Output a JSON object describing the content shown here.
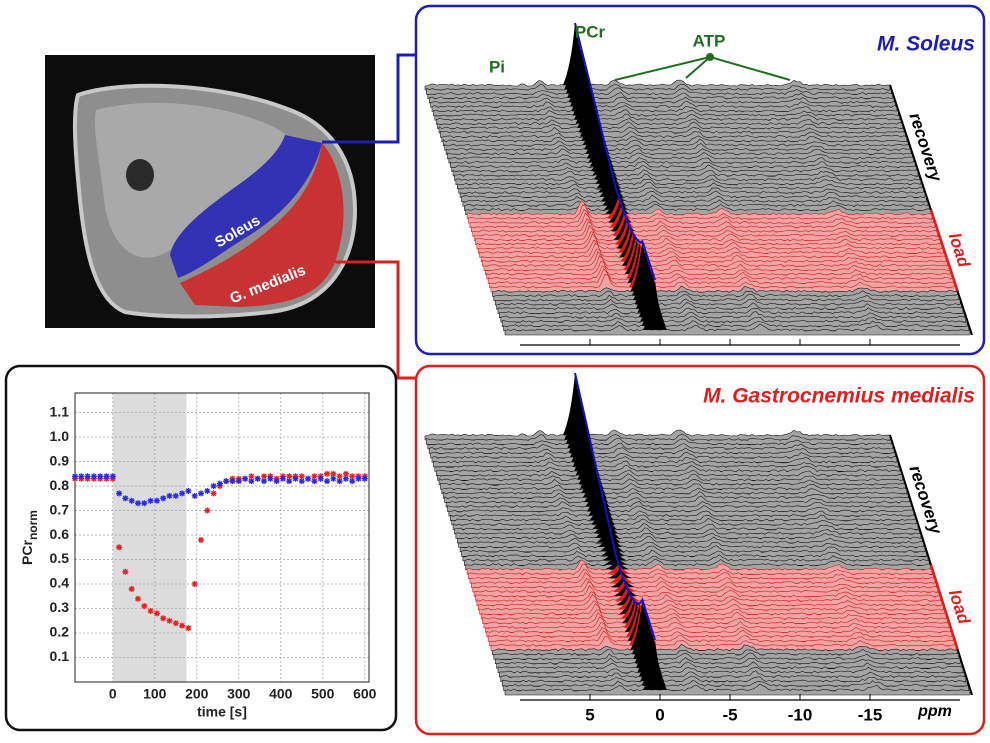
{
  "mri": {
    "labels": [
      "Soleus",
      "G. medialis"
    ]
  },
  "spectra": {
    "panels": [
      {
        "title": "M. Soleus",
        "color": "#1d1db8"
      },
      {
        "title": "M. Gastrocnemius medialis",
        "color": "#e21d1d"
      }
    ],
    "peak_labels": {
      "pi": "Pi",
      "pcr": "PCr",
      "atp": "ATP"
    },
    "phase_labels": [
      "recovery",
      "load"
    ],
    "ppm_ticks": [
      5,
      0,
      -5,
      -10,
      -15
    ],
    "ppm_label": "ppm"
  },
  "chart_data": {
    "type": "scatter",
    "xlabel": "time [s]",
    "ylabel": "PCr",
    "ylabel_sub": "norm",
    "xlim": [
      -90,
      610
    ],
    "ylim": [
      0,
      1.18
    ],
    "xticks": [
      0,
      100,
      200,
      300,
      400,
      500,
      600
    ],
    "yticks": [
      0.1,
      0.2,
      0.3,
      0.4,
      0.5,
      0.6,
      0.7,
      0.8,
      0.9,
      {
        "value": 1,
        "label": "1.0"
      },
      1.1
    ],
    "grid": true,
    "shade_x": [
      0,
      175
    ],
    "x": [
      -90,
      -75,
      -60,
      -45,
      -30,
      -15,
      0,
      15,
      30,
      45,
      60,
      75,
      90,
      105,
      120,
      135,
      150,
      165,
      180,
      195,
      210,
      225,
      240,
      255,
      270,
      285,
      300,
      315,
      330,
      345,
      360,
      375,
      390,
      405,
      420,
      435,
      450,
      465,
      480,
      495,
      510,
      525,
      540,
      555,
      570,
      585,
      600
    ],
    "series": [
      {
        "color": "#e8201e",
        "values": [
          0.83,
          0.83,
          0.83,
          0.83,
          0.83,
          0.83,
          0.83,
          0.55,
          0.45,
          0.38,
          0.34,
          0.31,
          0.29,
          0.28,
          0.26,
          0.25,
          0.24,
          0.23,
          0.22,
          0.4,
          0.58,
          0.7,
          0.77,
          0.8,
          0.82,
          0.83,
          0.83,
          0.83,
          0.84,
          0.83,
          0.84,
          0.84,
          0.83,
          0.84,
          0.84,
          0.84,
          0.84,
          0.83,
          0.84,
          0.84,
          0.85,
          0.85,
          0.84,
          0.85,
          0.84,
          0.84,
          0.84
        ]
      },
      {
        "color": "#2a2ae6",
        "values": [
          0.84,
          0.84,
          0.84,
          0.84,
          0.84,
          0.84,
          0.84,
          0.77,
          0.75,
          0.74,
          0.73,
          0.73,
          0.74,
          0.74,
          0.75,
          0.76,
          0.76,
          0.77,
          0.78,
          0.76,
          0.77,
          0.78,
          0.8,
          0.81,
          0.82,
          0.82,
          0.82,
          0.83,
          0.82,
          0.83,
          0.82,
          0.83,
          0.82,
          0.83,
          0.82,
          0.83,
          0.82,
          0.83,
          0.82,
          0.83,
          0.82,
          0.83,
          0.82,
          0.83,
          0.82,
          0.83,
          0.83
        ]
      }
    ]
  }
}
